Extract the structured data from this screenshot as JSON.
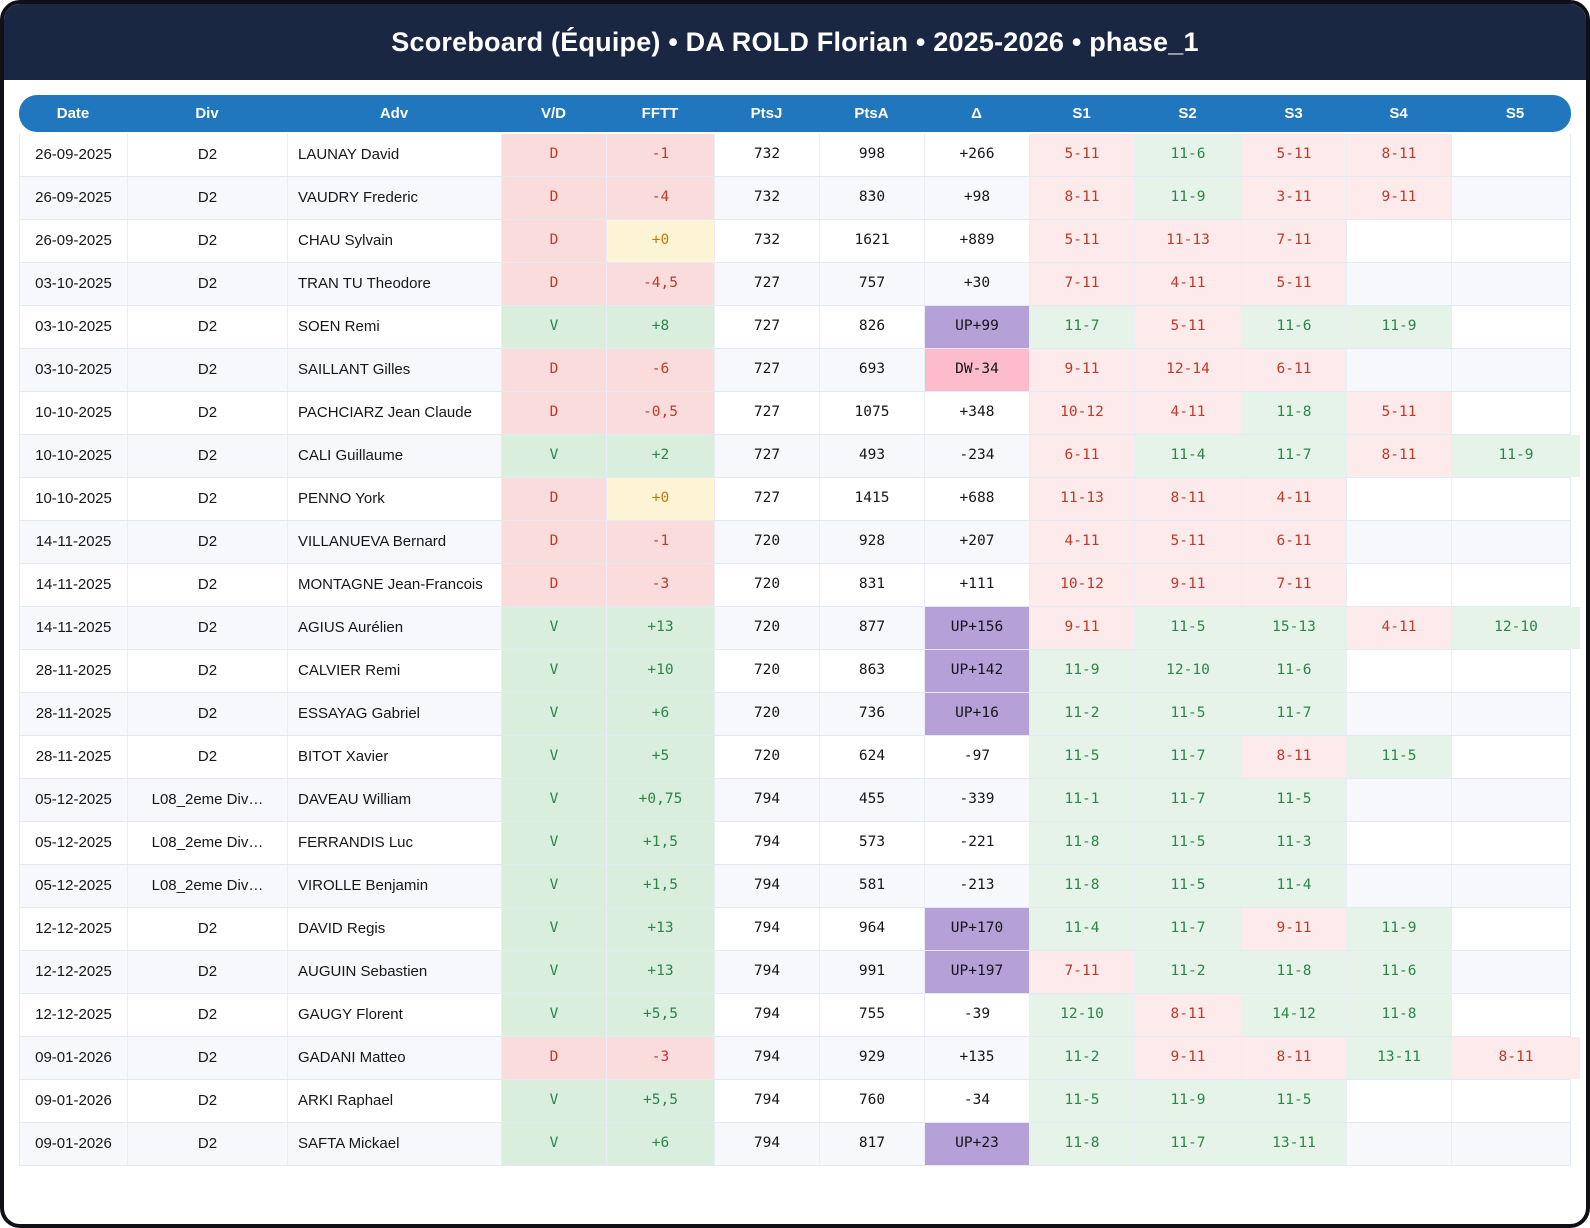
{
  "title": "Scoreboard (Équipe) • DA ROLD Florian • 2025-2026 • phase_1",
  "colors": {
    "navy": "#1a2742",
    "header_blue": "#2177bd",
    "win_text": "#2d8646",
    "loss_text": "#c0392b",
    "zero_text": "#b97d10",
    "win_bg": "#daeede",
    "loss_bg": "#fadcdc",
    "zero_bg": "#fdf3d5",
    "setwin_bg": "#e5f3e9",
    "setloss_bg": "#fdeaea",
    "up_bg": "#b5a1d8",
    "down_bg": "#fcbccb"
  },
  "table": {
    "columns": [
      "Date",
      "Div",
      "Adv",
      "V/D",
      "FFTT",
      "PtsJ",
      "PtsA",
      "Δ",
      "S1",
      "S2",
      "S3",
      "S4",
      "S5"
    ],
    "rows": [
      {
        "date": "26-09-2025",
        "div": "D2",
        "adv": "LAUNAY David",
        "vd": "D",
        "fftt": "-1",
        "fftt_style": "neg",
        "ptsj": "732",
        "ptsa": "998",
        "delta": "+266",
        "delta_style": "plain",
        "sets": [
          [
            "5-11",
            "l"
          ],
          [
            "11-6",
            "w"
          ],
          [
            "5-11",
            "l"
          ],
          [
            "8-11",
            "l"
          ],
          null
        ]
      },
      {
        "date": "26-09-2025",
        "div": "D2",
        "adv": "VAUDRY Frederic",
        "vd": "D",
        "fftt": "-4",
        "fftt_style": "neg",
        "ptsj": "732",
        "ptsa": "830",
        "delta": "+98",
        "delta_style": "plain",
        "sets": [
          [
            "8-11",
            "l"
          ],
          [
            "11-9",
            "w"
          ],
          [
            "3-11",
            "l"
          ],
          [
            "9-11",
            "l"
          ],
          null
        ]
      },
      {
        "date": "26-09-2025",
        "div": "D2",
        "adv": "CHAU Sylvain",
        "vd": "D",
        "fftt": "+0",
        "fftt_style": "zero",
        "ptsj": "732",
        "ptsa": "1621",
        "delta": "+889",
        "delta_style": "plain",
        "sets": [
          [
            "5-11",
            "l"
          ],
          [
            "11-13",
            "l"
          ],
          [
            "7-11",
            "l"
          ],
          null,
          null
        ]
      },
      {
        "date": "03-10-2025",
        "div": "D2",
        "adv": "TRAN TU Theodore",
        "vd": "D",
        "fftt": "-4,5",
        "fftt_style": "neg",
        "ptsj": "727",
        "ptsa": "757",
        "delta": "+30",
        "delta_style": "plain",
        "sets": [
          [
            "7-11",
            "l"
          ],
          [
            "4-11",
            "l"
          ],
          [
            "5-11",
            "l"
          ],
          null,
          null
        ]
      },
      {
        "date": "03-10-2025",
        "div": "D2",
        "adv": "SOEN Remi",
        "vd": "V",
        "fftt": "+8",
        "fftt_style": "pos",
        "ptsj": "727",
        "ptsa": "826",
        "delta": "UP+99",
        "delta_style": "up",
        "sets": [
          [
            "11-7",
            "w"
          ],
          [
            "5-11",
            "l"
          ],
          [
            "11-6",
            "w"
          ],
          [
            "11-9",
            "w"
          ],
          null
        ]
      },
      {
        "date": "03-10-2025",
        "div": "D2",
        "adv": "SAILLANT Gilles",
        "vd": "D",
        "fftt": "-6",
        "fftt_style": "neg",
        "ptsj": "727",
        "ptsa": "693",
        "delta": "DW-34",
        "delta_style": "down",
        "sets": [
          [
            "9-11",
            "l"
          ],
          [
            "12-14",
            "l"
          ],
          [
            "6-11",
            "l"
          ],
          null,
          null
        ]
      },
      {
        "date": "10-10-2025",
        "div": "D2",
        "adv": "PACHCIARZ Jean Claude",
        "vd": "D",
        "fftt": "-0,5",
        "fftt_style": "neg",
        "ptsj": "727",
        "ptsa": "1075",
        "delta": "+348",
        "delta_style": "plain",
        "sets": [
          [
            "10-12",
            "l"
          ],
          [
            "4-11",
            "l"
          ],
          [
            "11-8",
            "w"
          ],
          [
            "5-11",
            "l"
          ],
          null
        ]
      },
      {
        "date": "10-10-2025",
        "div": "D2",
        "adv": "CALI Guillaume",
        "vd": "V",
        "fftt": "+2",
        "fftt_style": "pos",
        "ptsj": "727",
        "ptsa": "493",
        "delta": "-234",
        "delta_style": "plain",
        "sets": [
          [
            "6-11",
            "l"
          ],
          [
            "11-4",
            "w"
          ],
          [
            "11-7",
            "w"
          ],
          [
            "8-11",
            "l"
          ],
          [
            "11-9",
            "w"
          ]
        ]
      },
      {
        "date": "10-10-2025",
        "div": "D2",
        "adv": "PENNO York",
        "vd": "D",
        "fftt": "+0",
        "fftt_style": "zero",
        "ptsj": "727",
        "ptsa": "1415",
        "delta": "+688",
        "delta_style": "plain",
        "sets": [
          [
            "11-13",
            "l"
          ],
          [
            "8-11",
            "l"
          ],
          [
            "4-11",
            "l"
          ],
          null,
          null
        ]
      },
      {
        "date": "14-11-2025",
        "div": "D2",
        "adv": "VILLANUEVA Bernard",
        "vd": "D",
        "fftt": "-1",
        "fftt_style": "neg",
        "ptsj": "720",
        "ptsa": "928",
        "delta": "+207",
        "delta_style": "plain",
        "sets": [
          [
            "4-11",
            "l"
          ],
          [
            "5-11",
            "l"
          ],
          [
            "6-11",
            "l"
          ],
          null,
          null
        ]
      },
      {
        "date": "14-11-2025",
        "div": "D2",
        "adv": "MONTAGNE Jean-Francois",
        "vd": "D",
        "fftt": "-3",
        "fftt_style": "neg",
        "ptsj": "720",
        "ptsa": "831",
        "delta": "+111",
        "delta_style": "plain",
        "sets": [
          [
            "10-12",
            "l"
          ],
          [
            "9-11",
            "l"
          ],
          [
            "7-11",
            "l"
          ],
          null,
          null
        ]
      },
      {
        "date": "14-11-2025",
        "div": "D2",
        "adv": "AGIUS Aurélien",
        "vd": "V",
        "fftt": "+13",
        "fftt_style": "pos",
        "ptsj": "720",
        "ptsa": "877",
        "delta": "UP+156",
        "delta_style": "up",
        "sets": [
          [
            "9-11",
            "l"
          ],
          [
            "11-5",
            "w"
          ],
          [
            "15-13",
            "w"
          ],
          [
            "4-11",
            "l"
          ],
          [
            "12-10",
            "w"
          ]
        ]
      },
      {
        "date": "28-11-2025",
        "div": "D2",
        "adv": "CALVIER Remi",
        "vd": "V",
        "fftt": "+10",
        "fftt_style": "pos",
        "ptsj": "720",
        "ptsa": "863",
        "delta": "UP+142",
        "delta_style": "up",
        "sets": [
          [
            "11-9",
            "w"
          ],
          [
            "12-10",
            "w"
          ],
          [
            "11-6",
            "w"
          ],
          null,
          null
        ]
      },
      {
        "date": "28-11-2025",
        "div": "D2",
        "adv": "ESSAYAG Gabriel",
        "vd": "V",
        "fftt": "+6",
        "fftt_style": "pos",
        "ptsj": "720",
        "ptsa": "736",
        "delta": "UP+16",
        "delta_style": "up",
        "sets": [
          [
            "11-2",
            "w"
          ],
          [
            "11-5",
            "w"
          ],
          [
            "11-7",
            "w"
          ],
          null,
          null
        ]
      },
      {
        "date": "28-11-2025",
        "div": "D2",
        "adv": "BITOT Xavier",
        "vd": "V",
        "fftt": "+5",
        "fftt_style": "pos",
        "ptsj": "720",
        "ptsa": "624",
        "delta": "-97",
        "delta_style": "plain",
        "sets": [
          [
            "11-5",
            "w"
          ],
          [
            "11-7",
            "w"
          ],
          [
            "8-11",
            "l"
          ],
          [
            "11-5",
            "w"
          ],
          null
        ]
      },
      {
        "date": "05-12-2025",
        "div": "L08_2eme Div…",
        "adv": "DAVEAU William",
        "vd": "V",
        "fftt": "+0,75",
        "fftt_style": "pos",
        "ptsj": "794",
        "ptsa": "455",
        "delta": "-339",
        "delta_style": "plain",
        "sets": [
          [
            "11-1",
            "w"
          ],
          [
            "11-7",
            "w"
          ],
          [
            "11-5",
            "w"
          ],
          null,
          null
        ]
      },
      {
        "date": "05-12-2025",
        "div": "L08_2eme Div…",
        "adv": "FERRANDIS Luc",
        "vd": "V",
        "fftt": "+1,5",
        "fftt_style": "pos",
        "ptsj": "794",
        "ptsa": "573",
        "delta": "-221",
        "delta_style": "plain",
        "sets": [
          [
            "11-8",
            "w"
          ],
          [
            "11-5",
            "w"
          ],
          [
            "11-3",
            "w"
          ],
          null,
          null
        ]
      },
      {
        "date": "05-12-2025",
        "div": "L08_2eme Div…",
        "adv": "VIROLLE Benjamin",
        "vd": "V",
        "fftt": "+1,5",
        "fftt_style": "pos",
        "ptsj": "794",
        "ptsa": "581",
        "delta": "-213",
        "delta_style": "plain",
        "sets": [
          [
            "11-8",
            "w"
          ],
          [
            "11-5",
            "w"
          ],
          [
            "11-4",
            "w"
          ],
          null,
          null
        ]
      },
      {
        "date": "12-12-2025",
        "div": "D2",
        "adv": "DAVID Regis",
        "vd": "V",
        "fftt": "+13",
        "fftt_style": "pos",
        "ptsj": "794",
        "ptsa": "964",
        "delta": "UP+170",
        "delta_style": "up",
        "sets": [
          [
            "11-4",
            "w"
          ],
          [
            "11-7",
            "w"
          ],
          [
            "9-11",
            "l"
          ],
          [
            "11-9",
            "w"
          ],
          null
        ]
      },
      {
        "date": "12-12-2025",
        "div": "D2",
        "adv": "AUGUIN Sebastien",
        "vd": "V",
        "fftt": "+13",
        "fftt_style": "pos",
        "ptsj": "794",
        "ptsa": "991",
        "delta": "UP+197",
        "delta_style": "up",
        "sets": [
          [
            "7-11",
            "l"
          ],
          [
            "11-2",
            "w"
          ],
          [
            "11-8",
            "w"
          ],
          [
            "11-6",
            "w"
          ],
          null
        ]
      },
      {
        "date": "12-12-2025",
        "div": "D2",
        "adv": "GAUGY Florent",
        "vd": "V",
        "fftt": "+5,5",
        "fftt_style": "pos",
        "ptsj": "794",
        "ptsa": "755",
        "delta": "-39",
        "delta_style": "plain",
        "sets": [
          [
            "12-10",
            "w"
          ],
          [
            "8-11",
            "l"
          ],
          [
            "14-12",
            "w"
          ],
          [
            "11-8",
            "w"
          ],
          null
        ]
      },
      {
        "date": "09-01-2026",
        "div": "D2",
        "adv": "GADANI Matteo",
        "vd": "D",
        "fftt": "-3",
        "fftt_style": "neg",
        "ptsj": "794",
        "ptsa": "929",
        "delta": "+135",
        "delta_style": "plain",
        "sets": [
          [
            "11-2",
            "w"
          ],
          [
            "9-11",
            "l"
          ],
          [
            "8-11",
            "l"
          ],
          [
            "13-11",
            "w"
          ],
          [
            "8-11",
            "l"
          ]
        ]
      },
      {
        "date": "09-01-2026",
        "div": "D2",
        "adv": "ARKI Raphael",
        "vd": "V",
        "fftt": "+5,5",
        "fftt_style": "pos",
        "ptsj": "794",
        "ptsa": "760",
        "delta": "-34",
        "delta_style": "plain",
        "sets": [
          [
            "11-5",
            "w"
          ],
          [
            "11-9",
            "w"
          ],
          [
            "11-5",
            "w"
          ],
          null,
          null
        ]
      },
      {
        "date": "09-01-2026",
        "div": "D2",
        "adv": "SAFTA Mickael",
        "vd": "V",
        "fftt": "+6",
        "fftt_style": "pos",
        "ptsj": "794",
        "ptsa": "817",
        "delta": "UP+23",
        "delta_style": "up",
        "sets": [
          [
            "11-8",
            "w"
          ],
          [
            "11-7",
            "w"
          ],
          [
            "13-11",
            "w"
          ],
          null,
          null
        ]
      }
    ]
  }
}
